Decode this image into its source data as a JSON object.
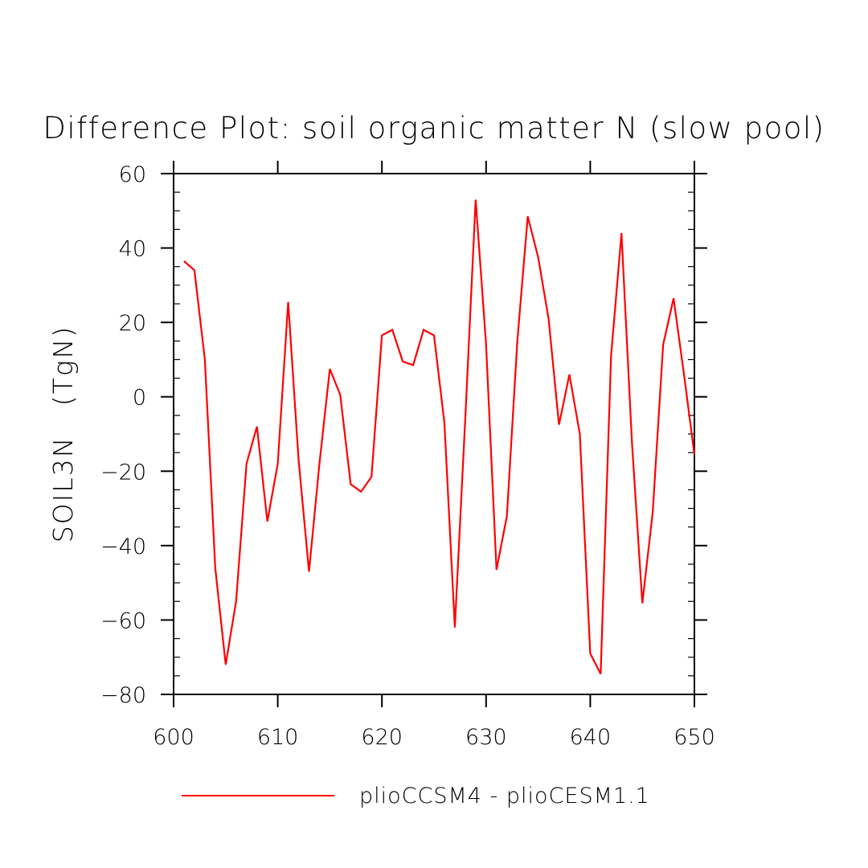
{
  "chart_data": {
    "type": "line",
    "title": "Difference Plot: soil organic matter N (slow pool)",
    "xlabel": "",
    "ylabel": "SOIL3N   (TgN)",
    "xlim": [
      600,
      650
    ],
    "ylim": [
      -80,
      60
    ],
    "xticks": [
      600,
      610,
      620,
      630,
      640,
      650
    ],
    "yticks": [
      -80,
      -60,
      -40,
      -20,
      0,
      20,
      40,
      60
    ],
    "xtick_labels": [
      "600",
      "610",
      "620",
      "630",
      "640",
      "650"
    ],
    "ytick_labels": [
      "−80",
      "−60",
      "−40",
      "−20",
      "0",
      "20",
      "40",
      "60"
    ],
    "grid": false,
    "legend_position": "bottom",
    "series": [
      {
        "name": "plioCCSM4 - plioCESM1.1",
        "color": "#ff0000",
        "x": [
          601,
          602,
          603,
          604,
          605,
          606,
          607,
          608,
          609,
          610,
          611,
          612,
          613,
          614,
          615,
          616,
          617,
          618,
          619,
          620,
          621,
          622,
          623,
          624,
          625,
          626,
          627,
          628,
          629,
          630,
          631,
          632,
          633,
          634,
          635,
          636,
          637,
          638,
          639,
          640,
          641,
          642,
          643,
          644,
          645,
          646,
          647,
          648,
          649,
          650
        ],
        "y": [
          36.5,
          34,
          10,
          -46,
          -72,
          -55,
          -18,
          -8,
          -33.5,
          -18,
          25.5,
          -17,
          -47,
          -18,
          7.5,
          0.5,
          -23.5,
          -25.5,
          -21.5,
          16.5,
          18,
          9.5,
          8.5,
          18,
          16.5,
          -7,
          -62,
          -6,
          53,
          14,
          -46.5,
          -32,
          15,
          48.5,
          37.5,
          21,
          -7.5,
          6,
          -10,
          -69,
          -74.5,
          11,
          44,
          -12,
          -55.5,
          -31,
          14,
          26.5,
          6,
          -15.5
        ]
      }
    ]
  }
}
